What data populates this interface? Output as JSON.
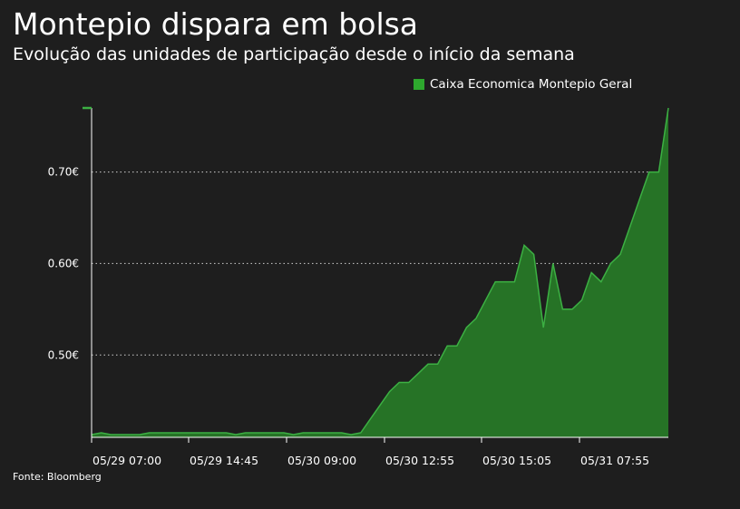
{
  "title": "Montepio dispara em bolsa",
  "subtitle": "Evolução das unidades de participação desde o início da semana",
  "source": "Fonte: Bloomberg",
  "colors": {
    "background": "#1e1e1e",
    "fill": "#267326",
    "line": "#3cb043",
    "legend": "#2ea82e",
    "text": "#ffffff"
  },
  "chart_data": {
    "type": "area",
    "legend_position": "top-right",
    "series": [
      {
        "name": "Caixa Economica Montepio Geral",
        "values": [
          0.413,
          0.415,
          0.413,
          0.413,
          0.413,
          0.413,
          0.415,
          0.415,
          0.415,
          0.415,
          0.415,
          0.415,
          0.415,
          0.415,
          0.415,
          0.413,
          0.415,
          0.415,
          0.415,
          0.415,
          0.415,
          0.413,
          0.415,
          0.415,
          0.415,
          0.415,
          0.415,
          0.413,
          0.415,
          0.43,
          0.445,
          0.46,
          0.47,
          0.47,
          0.48,
          0.49,
          0.49,
          0.51,
          0.51,
          0.53,
          0.54,
          0.56,
          0.58,
          0.58,
          0.58,
          0.62,
          0.61,
          0.53,
          0.6,
          0.55,
          0.55,
          0.56,
          0.59,
          0.58,
          0.6,
          0.61,
          0.64,
          0.67,
          0.7,
          0.7,
          0.77
        ]
      }
    ],
    "x_ticks": [
      "05/29 07:00",
      "05/29 14:45",
      "05/30 09:00",
      "05/30 12:55",
      "05/30 15:05",
      "05/31 07:55"
    ],
    "y_ticks": [
      "0.50€",
      "0.60€",
      "0.70€"
    ],
    "y_tick_values": [
      0.5,
      0.6,
      0.7
    ],
    "ylim": [
      0.41,
      0.77
    ],
    "grid": "horizontal-dotted"
  }
}
